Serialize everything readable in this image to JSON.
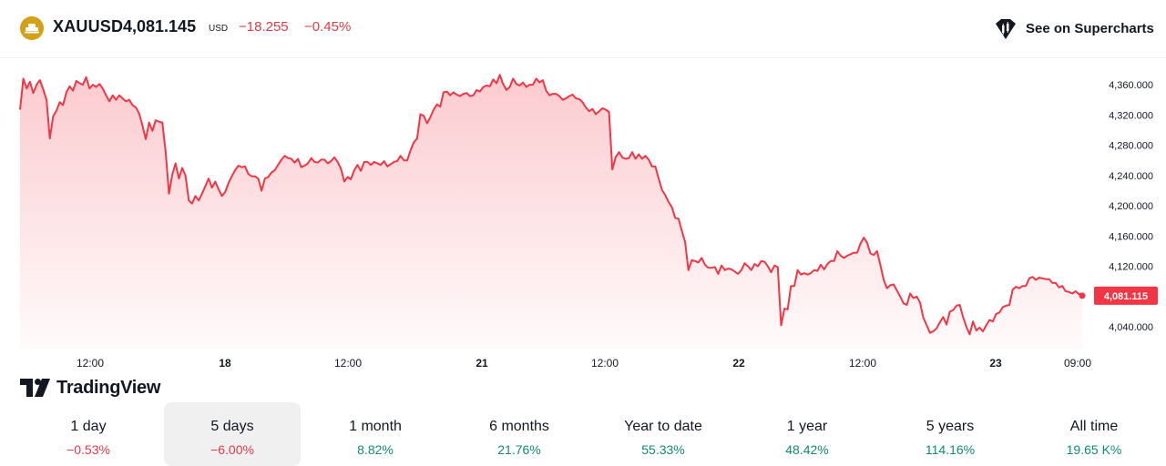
{
  "header": {
    "symbol": "XAUUSD",
    "price": "4,081.145",
    "currency": "USD",
    "change": "−18.255",
    "change_pct": "−0.45%",
    "supercharts_label": "See on Supercharts",
    "logo_icon": "gold-bars-icon",
    "supercharts_icon": "supercharts-icon"
  },
  "branding": {
    "tradingview_label": "TradingView"
  },
  "colors": {
    "line": "#f23645",
    "negative": "#e03a47",
    "positive": "#0f8c6e",
    "logo": "#d3a017"
  },
  "chart_data": {
    "type": "area",
    "y_axis_ticks": [
      "4,360.000",
      "4,320.000",
      "4,280.000",
      "4,240.000",
      "4,200.000",
      "4,160.000",
      "4,120.000",
      "4,080.000",
      "4,040.000"
    ],
    "x_axis_ticks": [
      "12:00",
      "18",
      "12:00",
      "21",
      "12:00",
      "22",
      "12:00",
      "23",
      "09:00"
    ],
    "ylim": [
      4010,
      4395
    ],
    "last_price_label": "4,081.115",
    "last_price": 4081.115,
    "grid": false,
    "values": [
      4327,
      4368,
      4355,
      4364,
      4349,
      4360,
      4366,
      4354,
      4340,
      4289,
      4318,
      4326,
      4337,
      4333,
      4350,
      4358,
      4352,
      4365,
      4362,
      4360,
      4370,
      4355,
      4360,
      4357,
      4361,
      4355,
      4346,
      4338,
      4346,
      4340,
      4346,
      4342,
      4338,
      4340,
      4333,
      4330,
      4322,
      4306,
      4288,
      4310,
      4299,
      4313,
      4311,
      4310,
      4272,
      4216,
      4241,
      4256,
      4236,
      4250,
      4240,
      4207,
      4203,
      4213,
      4207,
      4216,
      4226,
      4236,
      4224,
      4232,
      4222,
      4213,
      4218,
      4230,
      4239,
      4247,
      4253,
      4251,
      4252,
      4242,
      4239,
      4239,
      4236,
      4220,
      4236,
      4238,
      4244,
      4247,
      4254,
      4261,
      4266,
      4263,
      4262,
      4257,
      4262,
      4251,
      4253,
      4256,
      4263,
      4258,
      4257,
      4261,
      4261,
      4256,
      4259,
      4264,
      4258,
      4249,
      4232,
      4238,
      4235,
      4247,
      4254,
      4246,
      4258,
      4258,
      4254,
      4258,
      4256,
      4254,
      4259,
      4252,
      4255,
      4258,
      4259,
      4266,
      4260,
      4260,
      4273,
      4284,
      4289,
      4321,
      4319,
      4309,
      4317,
      4327,
      4334,
      4331,
      4350,
      4351,
      4346,
      4350,
      4347,
      4345,
      4348,
      4349,
      4345,
      4346,
      4353,
      4351,
      4357,
      4359,
      4358,
      4367,
      4362,
      4373,
      4361,
      4353,
      4357,
      4368,
      4361,
      4359,
      4363,
      4357,
      4360,
      4360,
      4368,
      4363,
      4366,
      4352,
      4346,
      4348,
      4348,
      4345,
      4340,
      4342,
      4345,
      4347,
      4342,
      4341,
      4337,
      4330,
      4325,
      4328,
      4321,
      4325,
      4329,
      4327,
      4324,
      4248,
      4264,
      4271,
      4264,
      4262,
      4263,
      4271,
      4262,
      4268,
      4262,
      4266,
      4261,
      4252,
      4252,
      4236,
      4221,
      4214,
      4205,
      4198,
      4184,
      4183,
      4167,
      4152,
      4115,
      4128,
      4127,
      4125,
      4131,
      4122,
      4118,
      4118,
      4119,
      4110,
      4121,
      4115,
      4117,
      4116,
      4113,
      4110,
      4115,
      4124,
      4120,
      4115,
      4123,
      4120,
      4127,
      4126,
      4120,
      4112,
      4121,
      4119,
      4042,
      4064,
      4063,
      4094,
      4094,
      4115,
      4109,
      4111,
      4109,
      4111,
      4115,
      4114,
      4122,
      4116,
      4123,
      4127,
      4127,
      4140,
      4134,
      4131,
      4134,
      4136,
      4138,
      4138,
      4150,
      4158,
      4151,
      4137,
      4135,
      4140,
      4122,
      4102,
      4091,
      4095,
      4096,
      4088,
      4080,
      4071,
      4069,
      4084,
      4078,
      4080,
      4072,
      4052,
      4042,
      4032,
      4034,
      4038,
      4046,
      4053,
      4043,
      4060,
      4062,
      4068,
      4069,
      4053,
      4040,
      4030,
      4047,
      4035,
      4039,
      4034,
      4042,
      4049,
      4047,
      4057,
      4059,
      4066,
      4068,
      4069,
      4089,
      4093,
      4091,
      4094,
      4094,
      4104,
      4106,
      4102,
      4105,
      4104,
      4103,
      4103,
      4098,
      4098,
      4092,
      4094,
      4087,
      4086,
      4084,
      4087,
      4083,
      4084
    ]
  },
  "periods": [
    {
      "label": "1 day",
      "value": "−0.53%",
      "sign": "negative"
    },
    {
      "label": "5 days",
      "value": "−6.00%",
      "sign": "negative"
    },
    {
      "label": "1 month",
      "value": "8.82%",
      "sign": "positive"
    },
    {
      "label": "6 months",
      "value": "21.76%",
      "sign": "positive"
    },
    {
      "label": "Year to date",
      "value": "55.33%",
      "sign": "positive"
    },
    {
      "label": "1 year",
      "value": "48.42%",
      "sign": "positive"
    },
    {
      "label": "5 years",
      "value": "114.16%",
      "sign": "positive"
    },
    {
      "label": "All time",
      "value": "19.65 K%",
      "sign": "positive"
    }
  ],
  "active_period": 1
}
